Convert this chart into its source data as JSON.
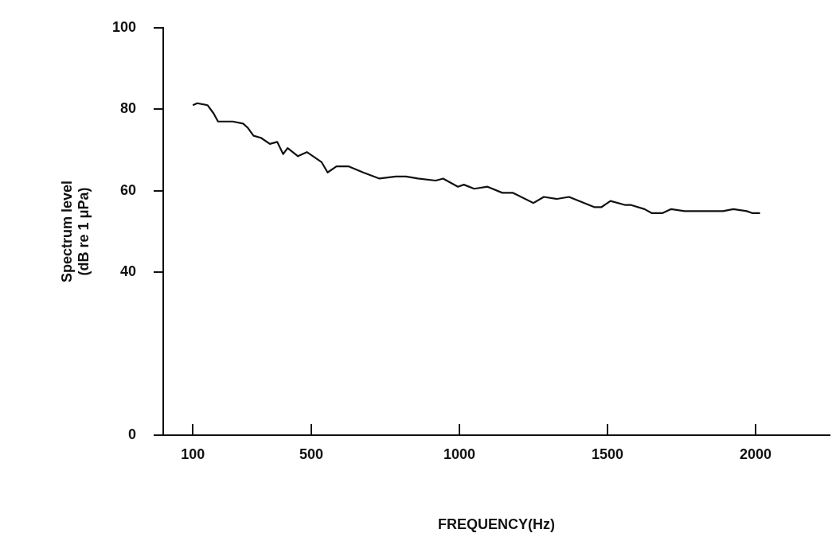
{
  "chart_data": {
    "type": "line",
    "xlabel": "FREQUENCY(Hz)",
    "ylabel": "Spectrum level\n(dB re 1 μPa)",
    "xlim": [
      0,
      2250
    ],
    "xticks": [
      100,
      500,
      1000,
      1500,
      2000
    ],
    "ylim": [
      0,
      100
    ],
    "yticks": [
      0,
      40,
      60,
      80,
      100
    ],
    "grid": false,
    "legend": false,
    "marker": "none",
    "line_style": "solid",
    "series": [
      {
        "color": "#111111",
        "x": [
          100,
          115,
          150,
          170,
          185,
          235,
          270,
          285,
          305,
          330,
          360,
          385,
          405,
          420,
          455,
          485,
          535,
          555,
          585,
          625,
          675,
          730,
          785,
          820,
          860,
          920,
          945,
          995,
          1015,
          1050,
          1095,
          1145,
          1180,
          1250,
          1285,
          1330,
          1370,
          1455,
          1480,
          1510,
          1560,
          1580,
          1625,
          1650,
          1685,
          1715,
          1760,
          1815,
          1845,
          1890,
          1925,
          1970,
          1990,
          2015
        ],
        "values": [
          81,
          81.5,
          81,
          79,
          77,
          77,
          76.5,
          75.5,
          73.5,
          73,
          71.5,
          72,
          69,
          70.5,
          68.5,
          69.5,
          67,
          64.5,
          66,
          66,
          64.5,
          63,
          63.5,
          63.5,
          63,
          62.5,
          63,
          61,
          61.5,
          60.5,
          61,
          59.5,
          59.5,
          57,
          58.5,
          58,
          58.5,
          56,
          56,
          57.5,
          56.5,
          56.5,
          55.5,
          54.5,
          54.5,
          55.5,
          55,
          55,
          55,
          55,
          55.5,
          55,
          54.5,
          54.5
        ]
      }
    ]
  }
}
